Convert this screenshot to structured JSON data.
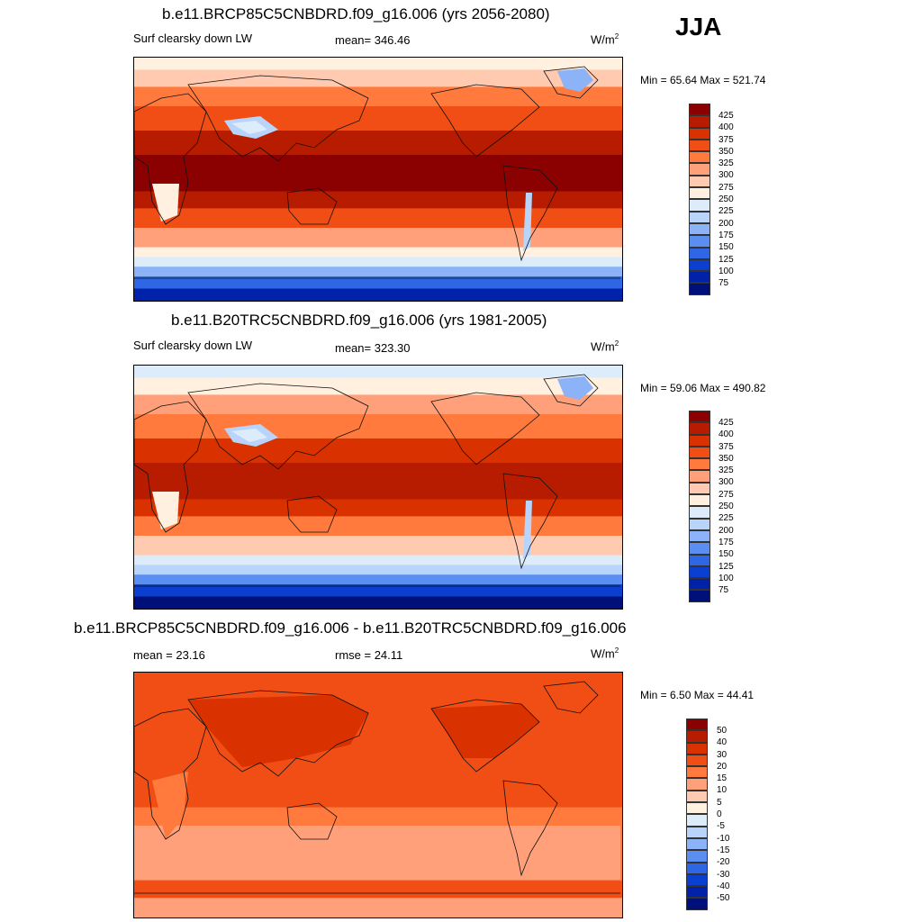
{
  "season": "JJA",
  "panels": [
    {
      "title": "b.e11.BRCP85C5CNBDRD.f09_g16.006 (yrs 2056-2080)",
      "left_label": "Surf clearsky down LW",
      "mean_label": "mean=  346.46",
      "units": "W/m",
      "units_sup": "2",
      "minmax": "Min =  65.64 Max = 521.74",
      "field": "rcp85"
    },
    {
      "title": "b.e11.B20TRC5CNBDRD.f09_g16.006 (yrs 1981-2005)",
      "left_label": "Surf clearsky down LW",
      "mean_label": "mean=  323.30",
      "units": "W/m",
      "units_sup": "2",
      "minmax": "Min =  59.06 Max = 490.82",
      "field": "hist"
    },
    {
      "title": "b.e11.BRCP85C5CNBDRD.f09_g16.006 - b.e11.B20TRC5CNBDRD.f09_g16.006",
      "left_label": "mean =  23.16",
      "mean_label": "rmse =  24.11",
      "units": "W/m",
      "units_sup": "2",
      "minmax": "Min =   6.50 Max =  44.41",
      "field": "diff"
    }
  ],
  "colorbar_abs": {
    "labels": [
      "425",
      "400",
      "375",
      "350",
      "325",
      "300",
      "275",
      "250",
      "225",
      "200",
      "175",
      "150",
      "125",
      "100",
      "75"
    ],
    "colors": [
      "#8b0000",
      "#b81c00",
      "#d93200",
      "#f04e14",
      "#ff7a3c",
      "#ffa07a",
      "#ffcab0",
      "#fff0e0",
      "#dcecfb",
      "#b8d4fb",
      "#8cb2f8",
      "#5a8ef0",
      "#2e66e6",
      "#0a3fd0",
      "#0022a8",
      "#00107a"
    ]
  },
  "colorbar_diff": {
    "labels": [
      "50",
      "40",
      "30",
      "20",
      "15",
      "10",
      "5",
      "0",
      "-5",
      "-10",
      "-15",
      "-20",
      "-30",
      "-40",
      "-50"
    ],
    "colors": [
      "#8b0000",
      "#b81c00",
      "#d93200",
      "#f04e14",
      "#ff7a3c",
      "#ffa07a",
      "#ffcab0",
      "#fff0e0",
      "#dcecfb",
      "#b8d4fb",
      "#8cb2f8",
      "#5a8ef0",
      "#2e66e6",
      "#0a3fd0",
      "#0022a8",
      "#00107a"
    ]
  }
}
